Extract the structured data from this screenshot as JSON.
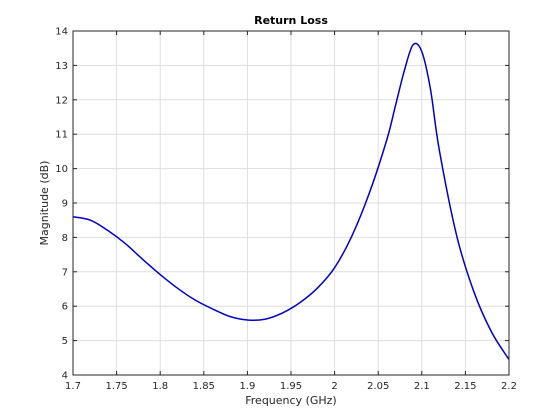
{
  "chart_data": {
    "type": "line",
    "title": "Return Loss",
    "xlabel": "Frequency (GHz)",
    "ylabel": "Magnitude (dB)",
    "xlim": [
      1.7,
      2.2
    ],
    "ylim": [
      4,
      14
    ],
    "xticks": [
      "1.7",
      "1.75",
      "1.8",
      "1.85",
      "1.9",
      "1.95",
      "2",
      "2.05",
      "2.1",
      "2.15",
      "2.2"
    ],
    "yticks": [
      "4",
      "5",
      "6",
      "7",
      "8",
      "9",
      "10",
      "11",
      "12",
      "13",
      "14"
    ],
    "grid": true,
    "series": [
      {
        "color": "#0000cd",
        "x": [
          1.7,
          1.72,
          1.74,
          1.76,
          1.78,
          1.8,
          1.82,
          1.84,
          1.86,
          1.88,
          1.9,
          1.92,
          1.94,
          1.96,
          1.98,
          2.0,
          2.02,
          2.04,
          2.06,
          2.07,
          2.08,
          2.09,
          2.1,
          2.11,
          2.12,
          2.14,
          2.16,
          2.18,
          2.2
        ],
        "y": [
          8.6,
          8.5,
          8.2,
          7.82,
          7.36,
          6.92,
          6.52,
          6.18,
          5.92,
          5.7,
          5.6,
          5.62,
          5.8,
          6.1,
          6.52,
          7.12,
          8.05,
          9.3,
          10.85,
          11.85,
          12.85,
          13.6,
          13.4,
          12.3,
          10.55,
          8.05,
          6.4,
          5.25,
          4.45
        ]
      }
    ]
  }
}
